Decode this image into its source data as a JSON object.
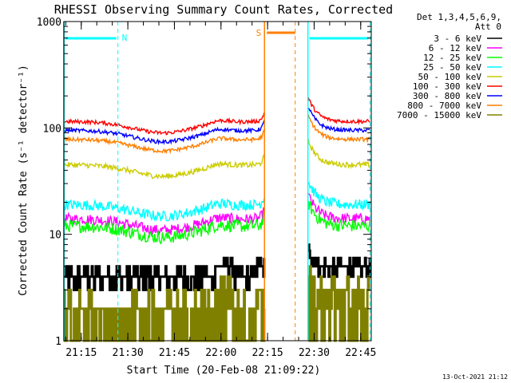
{
  "chart_data": {
    "type": "line",
    "title": "RHESSI Observing Summary Count Rates, Corrected",
    "xlabel": "Start Time (20-Feb-08 21:09:22)",
    "ylabel": "Corrected Count Rate (s⁻¹ detector⁻¹)",
    "y_scale": "log",
    "ylim": [
      1,
      1000
    ],
    "xlim_minutes": [
      0,
      99
    ],
    "x_ticks": [
      {
        "label": "21:15",
        "minute": 5.6
      },
      {
        "label": "21:30",
        "minute": 20.6
      },
      {
        "label": "21:45",
        "minute": 35.6
      },
      {
        "label": "22:00",
        "minute": 50.6
      },
      {
        "label": "22:15",
        "minute": 65.6
      },
      {
        "label": "22:30",
        "minute": 80.6
      },
      {
        "label": "22:45",
        "minute": 95.6
      }
    ],
    "y_ticks": [
      {
        "label": "1",
        "value": 1
      },
      {
        "label": "10",
        "value": 10
      },
      {
        "label": "100",
        "value": 100
      },
      {
        "label": "1000",
        "value": 1000
      }
    ],
    "legend_header": [
      "Det 1,3,4,5,6,9,",
      "Att 0"
    ],
    "legend_position": "right",
    "series": [
      {
        "name": "3 - 6 keV",
        "color": "#000000",
        "level": 4.5,
        "noise": 0.16,
        "step": true
      },
      {
        "name": "6 - 12 keV",
        "color": "#ff00ff",
        "level": 14,
        "noise": 0.05,
        "step": false
      },
      {
        "name": "12 - 25 keV",
        "color": "#00ff00",
        "level": 12,
        "noise": 0.06,
        "step": false
      },
      {
        "name": "25 - 50 keV",
        "color": "#00ffff",
        "level": 19,
        "noise": 0.05,
        "step": false
      },
      {
        "name": "50 - 100 keV",
        "color": "#cccc00",
        "level": 45,
        "noise": 0.025,
        "step": false
      },
      {
        "name": "100 - 300 keV",
        "color": "#ff0000",
        "level": 115,
        "noise": 0.018,
        "step": false
      },
      {
        "name": "300 - 800 keV",
        "color": "#0000ff",
        "level": 95,
        "noise": 0.018,
        "step": false
      },
      {
        "name": "800 - 7000 keV",
        "color": "#ff7f00",
        "level": 78,
        "noise": 0.018,
        "step": false
      },
      {
        "name": "7000 - 15000 keV",
        "color": "#808000",
        "level": 2.5,
        "noise": 0.2,
        "step": true
      }
    ],
    "data_gaps_minutes": [
      [
        64.6,
        78.6
      ]
    ],
    "night_periods": [
      {
        "label": "N",
        "start_minute": 0,
        "end_minute": 17.4,
        "color": "#00ffff"
      },
      {
        "label": "",
        "start_minute": 78.6,
        "end_minute": 98.6,
        "color": "#00ffff"
      }
    ],
    "saa_periods": [
      {
        "label": "S",
        "start_minute": 64.6,
        "end_minute": 74.5,
        "color": "#ff7f00"
      }
    ]
  },
  "footer_date": "13-Oct-2021 21:12"
}
